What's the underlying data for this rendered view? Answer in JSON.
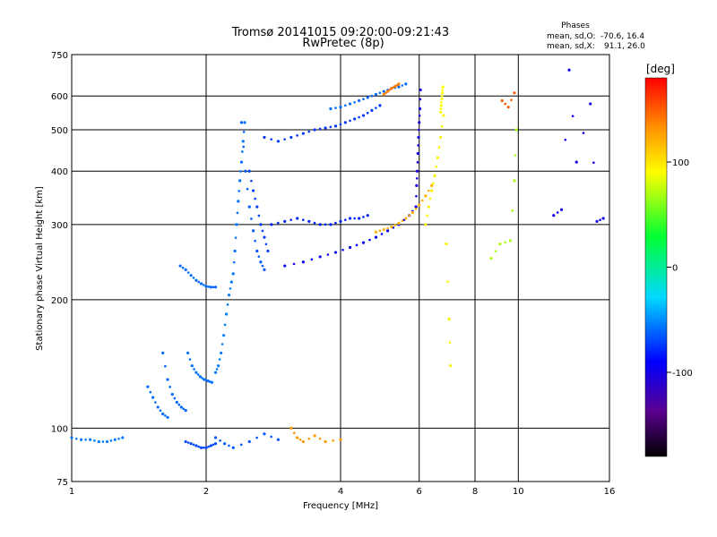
{
  "chart_data": {
    "type": "scatter",
    "title": "Tromsø 20141015 09:20:00-09:21:43",
    "subtitle": "RwPretec (8p)",
    "xlabel": "Frequency [MHz]",
    "ylabel": "Stationary phase Virtual Height [km]",
    "xscale": "log",
    "yscale": "log",
    "xlim": [
      1,
      16
    ],
    "ylim": [
      75,
      750
    ],
    "grid": true,
    "x_ticks": [
      {
        "value": 1,
        "label": "1"
      },
      {
        "value": 2,
        "label": "2"
      },
      {
        "value": 4,
        "label": "4"
      },
      {
        "value": 6,
        "label": "6"
      },
      {
        "value": 8,
        "label": "8"
      },
      {
        "value": 10,
        "label": "10"
      },
      {
        "value": 16,
        "label": "16"
      }
    ],
    "y_ticks": [
      {
        "value": 75,
        "label": "75"
      },
      {
        "value": 100,
        "label": "100"
      },
      {
        "value": 200,
        "label": "200"
      },
      {
        "value": 300,
        "label": "300"
      },
      {
        "value": 400,
        "label": "400"
      },
      {
        "value": 500,
        "label": "500"
      },
      {
        "value": 600,
        "label": "600"
      },
      {
        "value": 750,
        "label": "750"
      }
    ],
    "phase_stats": {
      "heading": "Phases",
      "o_label": "mean, sd,O:",
      "o_values": "-70.6, 16.4",
      "x_label": "mean, sd,X:",
      "x_values": "91.1, 26.0"
    },
    "colorbar": {
      "label": "[deg]",
      "ticks": [
        {
          "value": 100,
          "label": "100"
        },
        {
          "value": 0,
          "label": "0"
        },
        {
          "value": -100,
          "label": "-100"
        }
      ],
      "range": [
        -180,
        180
      ]
    },
    "traces": [
      {
        "x": [
          1.0,
          1.05,
          1.1,
          1.15,
          1.2,
          1.25,
          1.3
        ],
        "y": [
          95,
          94,
          94,
          93,
          93,
          94,
          95
        ],
        "phase": -55
      },
      {
        "x": [
          1.8,
          1.85,
          1.9,
          1.95,
          2.0,
          2.05,
          2.1
        ],
        "y": [
          93,
          92,
          91,
          90,
          90,
          91,
          92
        ],
        "phase": -70
      },
      {
        "x": [
          1.48,
          1.52,
          1.56,
          1.6,
          1.64
        ],
        "y": [
          125,
          118,
          112,
          108,
          106
        ],
        "phase": -60
      },
      {
        "x": [
          1.6,
          1.64,
          1.68,
          1.72,
          1.76,
          1.8
        ],
        "y": [
          150,
          130,
          120,
          115,
          112,
          110
        ],
        "phase": -62
      },
      {
        "x": [
          1.82,
          1.86,
          1.9,
          1.94,
          1.98,
          2.02,
          2.06
        ],
        "y": [
          150,
          140,
          135,
          132,
          130,
          129,
          128
        ],
        "phase": -58
      },
      {
        "x": [
          2.1,
          2.13,
          2.16,
          2.19,
          2.22,
          2.25,
          2.28
        ],
        "y": [
          135,
          140,
          150,
          165,
          185,
          205,
          220
        ],
        "phase": -55
      },
      {
        "x": [
          1.75,
          1.8,
          1.85,
          1.9,
          1.95,
          2.0,
          2.05,
          2.1
        ],
        "y": [
          240,
          235,
          228,
          222,
          218,
          215,
          214,
          214
        ],
        "phase": -60
      },
      {
        "x": [
          2.3,
          2.32,
          2.34,
          2.36,
          2.38,
          2.4,
          2.42,
          2.44
        ],
        "y": [
          230,
          260,
          300,
          340,
          380,
          420,
          470,
          520
        ],
        "phase": -58
      },
      {
        "x": [
          2.4,
          2.45,
          2.5,
          2.55,
          2.6,
          2.65,
          2.7
        ],
        "y": [
          520,
          400,
          330,
          290,
          260,
          245,
          235
        ],
        "phase": -65
      },
      {
        "x": [
          2.5,
          2.55,
          2.6,
          2.65,
          2.7,
          2.75
        ],
        "y": [
          400,
          360,
          330,
          300,
          280,
          260
        ],
        "phase": -72
      },
      {
        "x": [
          2.7,
          2.9,
          3.1,
          3.3,
          3.5,
          3.7,
          3.9,
          4.1,
          4.3,
          4.5,
          4.7,
          4.9
        ],
        "y": [
          480,
          470,
          480,
          490,
          500,
          505,
          510,
          520,
          530,
          540,
          555,
          570
        ],
        "phase": -75
      },
      {
        "x": [
          3.8,
          4.0,
          4.2,
          4.4,
          4.6,
          4.8,
          5.0,
          5.2,
          5.4,
          5.6
        ],
        "y": [
          560,
          565,
          575,
          585,
          595,
          605,
          615,
          625,
          630,
          640
        ],
        "phase": -60
      },
      {
        "x": [
          2.8,
          3.0,
          3.2,
          3.4,
          3.6,
          3.8,
          4.0,
          4.2,
          4.4,
          4.6
        ],
        "y": [
          300,
          305,
          310,
          305,
          300,
          300,
          305,
          310,
          310,
          315
        ],
        "phase": -80
      },
      {
        "x": [
          3.0,
          3.3,
          3.6,
          3.9,
          4.2,
          4.5,
          4.8,
          5.1,
          5.4,
          5.7,
          5.9
        ],
        "y": [
          240,
          245,
          252,
          258,
          265,
          272,
          280,
          290,
          300,
          315,
          330
        ],
        "phase": -95
      },
      {
        "x": [
          5.9,
          5.92,
          5.94,
          5.96,
          5.98,
          6.0,
          6.02,
          6.04
        ],
        "y": [
          330,
          370,
          400,
          440,
          480,
          520,
          560,
          620
        ],
        "phase": -100
      },
      {
        "x": [
          4.8,
          5.0,
          5.2,
          5.4,
          5.6,
          5.8,
          6.0,
          6.2,
          6.4
        ],
        "y": [
          288,
          292,
          296,
          302,
          310,
          320,
          333,
          350,
          370
        ],
        "phase": 120
      },
      {
        "x": [
          6.2,
          6.3,
          6.4,
          6.5,
          6.6,
          6.7,
          6.8
        ],
        "y": [
          300,
          330,
          360,
          390,
          430,
          480,
          540
        ],
        "phase": 95
      },
      {
        "x": [
          6.7,
          6.72,
          6.74,
          6.76,
          6.78
        ],
        "y": [
          550,
          570,
          590,
          610,
          630
        ],
        "phase": 90
      },
      {
        "x": [
          5.0,
          5.1,
          5.2,
          5.3,
          5.4
        ],
        "y": [
          605,
          615,
          625,
          632,
          640
        ],
        "phase": 140
      },
      {
        "x": [
          6.9,
          7.0,
          7.05
        ],
        "y": [
          270,
          180,
          140
        ],
        "phase": 95
      },
      {
        "x": [
          8.7,
          9.1,
          9.6,
          9.8,
          9.9
        ],
        "y": [
          250,
          270,
          275,
          380,
          500
        ],
        "phase": 70
      },
      {
        "x": [
          9.2,
          9.5,
          9.8
        ],
        "y": [
          585,
          565,
          610
        ],
        "phase": 150
      },
      {
        "x": [
          12.0,
          12.5,
          13.0,
          13.5,
          14.5,
          15.0,
          15.5
        ],
        "y": [
          315,
          325,
          690,
          420,
          575,
          305,
          310
        ],
        "phase": -100
      },
      {
        "x": [
          3.1,
          3.2,
          3.3,
          3.5,
          3.7,
          4.0
        ],
        "y": [
          100,
          95,
          93,
          96,
          93,
          94
        ],
        "phase": 130
      },
      {
        "x": [
          2.1,
          2.2,
          2.3,
          2.5,
          2.7,
          2.9
        ],
        "y": [
          95,
          92,
          90,
          93,
          97,
          94
        ],
        "phase": -65
      }
    ]
  }
}
